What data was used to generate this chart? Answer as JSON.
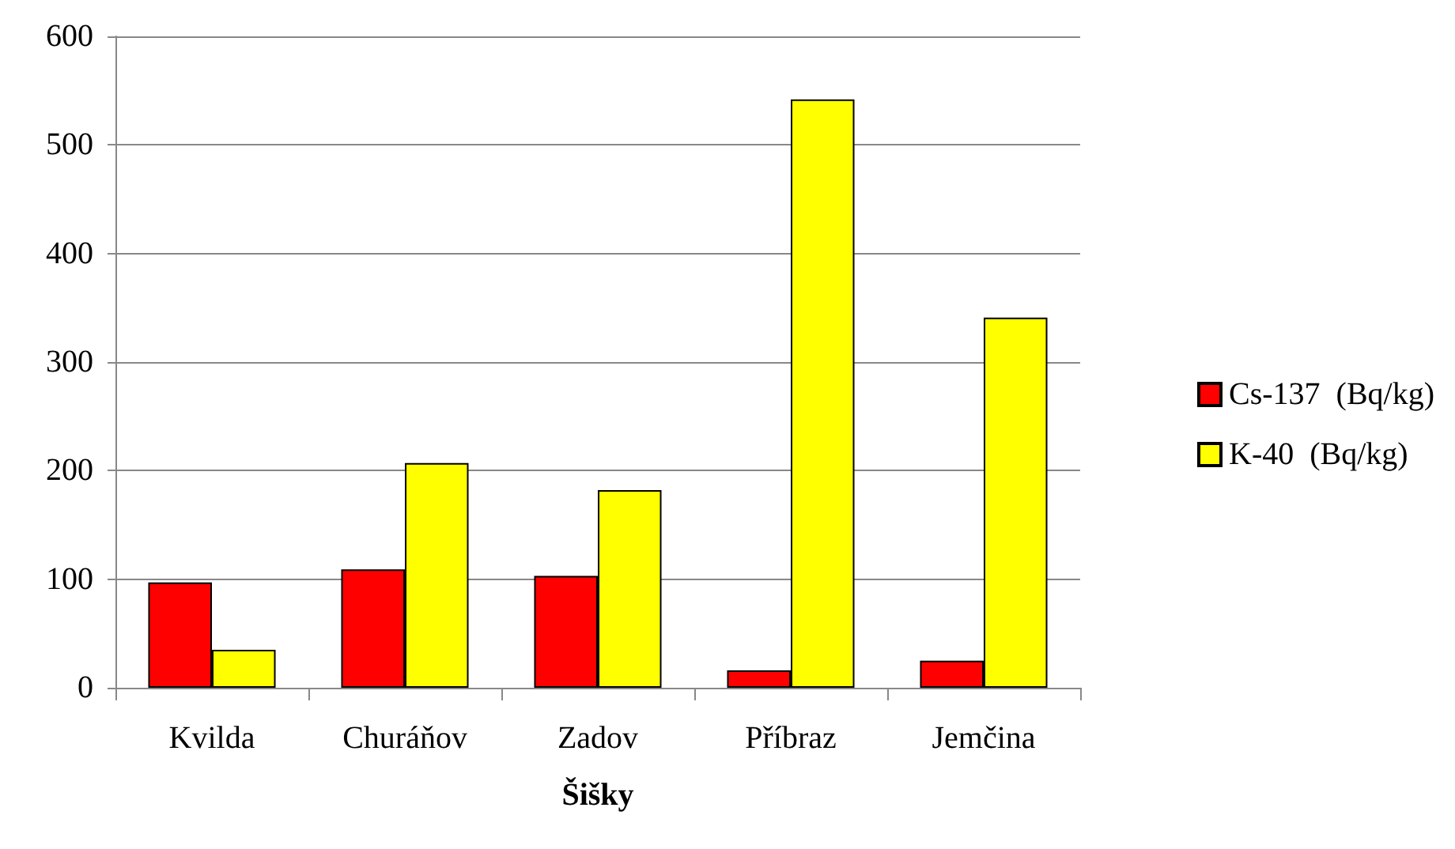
{
  "chart_data": {
    "type": "bar",
    "xlabel": "Šišky",
    "categories": [
      "Kvilda",
      "Churáňov",
      "Zadov",
      "Příbraz",
      "Jemčina"
    ],
    "series": [
      {
        "name": "Cs-137  (Bq/kg)",
        "color": "#ff0000",
        "values": [
          97,
          109,
          103,
          16,
          25
        ]
      },
      {
        "name": "K-40  (Bq/kg)",
        "color": "#ffff00",
        "values": [
          35,
          207,
          182,
          542,
          341
        ]
      }
    ],
    "ylim": [
      0,
      600
    ],
    "yticks": [
      0,
      100,
      200,
      300,
      400,
      500,
      600
    ],
    "grid": "y",
    "legend": "right"
  }
}
